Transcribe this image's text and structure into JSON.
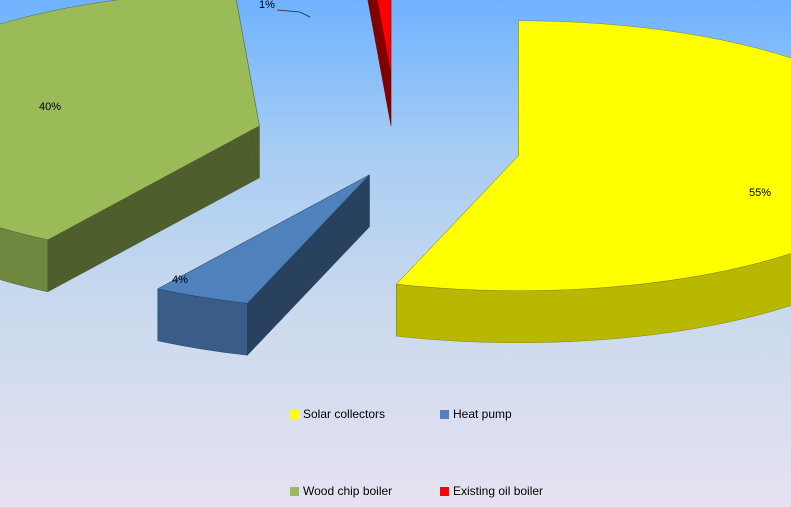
{
  "chart_data": {
    "type": "pie",
    "style": "3d-exploded",
    "title": "",
    "legend_placement": "bottom",
    "slices": [
      {
        "name": "Solar collectors",
        "value": 55,
        "label": "55%",
        "color": "#ffff00"
      },
      {
        "name": "Heat pump",
        "value": 4,
        "label": "4%",
        "color": "#4f81bd"
      },
      {
        "name": "Wood chip boiler",
        "value": 40,
        "label": "40%",
        "color": "#9bbb59"
      },
      {
        "name": "Existing oil boiler",
        "value": 1,
        "label": "1%",
        "color": "#ff0000"
      }
    ]
  }
}
